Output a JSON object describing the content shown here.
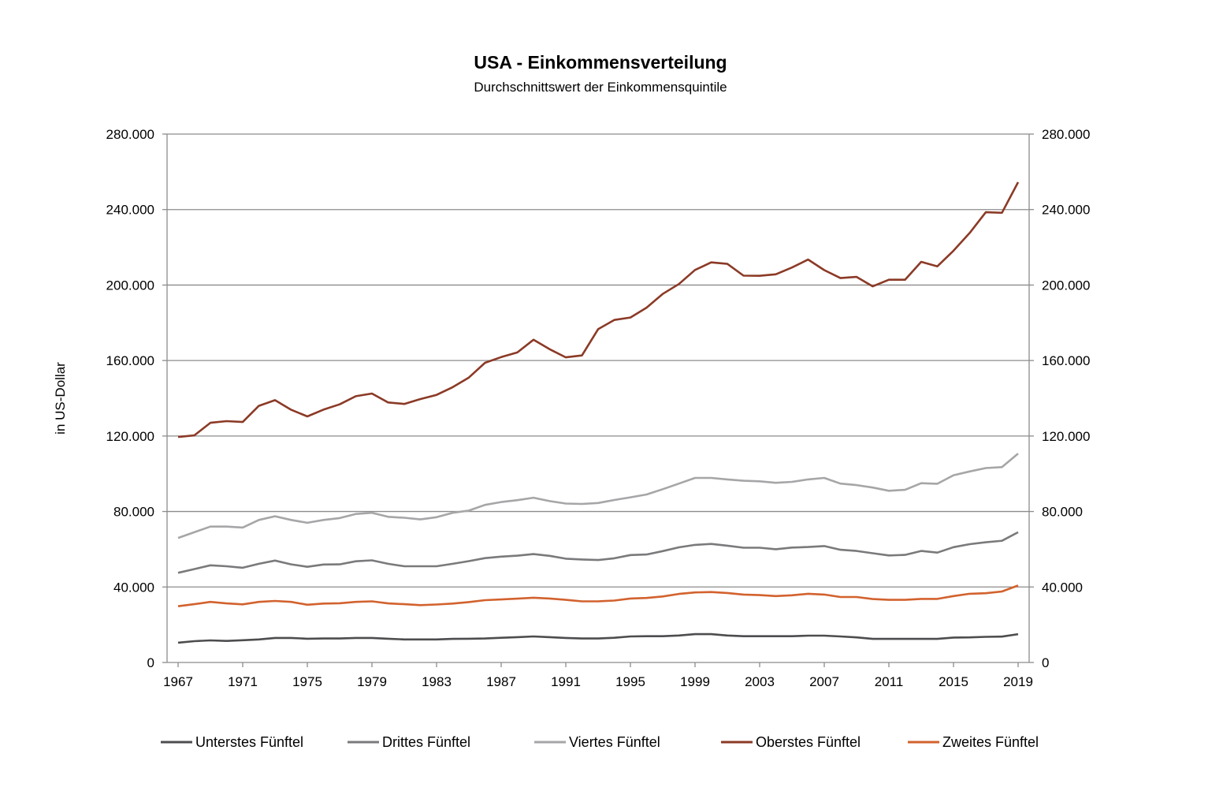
{
  "chart_data": {
    "type": "line",
    "title": "USA - Einkommensverteilung",
    "subtitle": "Durchschnittswert der Einkommensquintile",
    "ylabel": "in US-Dollar",
    "xlabel": "",
    "ylim": [
      0,
      280000
    ],
    "y_ticks": [
      "0",
      "40.000",
      "80.000",
      "120.000",
      "160.000",
      "200.000",
      "240.000",
      "280.000"
    ],
    "x_ticks": [
      "1967",
      "1971",
      "1975",
      "1979",
      "1983",
      "1987",
      "1991",
      "1995",
      "1999",
      "2003",
      "2007",
      "2011",
      "2015",
      "2019"
    ],
    "secondary_y_axis": true,
    "grid": "horizontal",
    "legend_position": "bottom",
    "x": [
      1967,
      1968,
      1969,
      1970,
      1971,
      1972,
      1973,
      1974,
      1975,
      1976,
      1977,
      1978,
      1979,
      1980,
      1981,
      1982,
      1983,
      1984,
      1985,
      1986,
      1987,
      1988,
      1989,
      1990,
      1991,
      1992,
      1993,
      1994,
      1995,
      1996,
      1997,
      1998,
      1999,
      2000,
      2001,
      2002,
      2003,
      2004,
      2005,
      2006,
      2007,
      2008,
      2009,
      2010,
      2011,
      2012,
      2013,
      2014,
      2015,
      2016,
      2017,
      2018,
      2019
    ],
    "series": [
      {
        "name": "Unterstes Fünftel",
        "color": "#4d4d4f",
        "values": [
          10500,
          11300,
          11700,
          11400,
          11800,
          12200,
          13000,
          13000,
          12600,
          12700,
          12700,
          13000,
          13000,
          12600,
          12200,
          12200,
          12200,
          12500,
          12600,
          12700,
          13100,
          13400,
          13800,
          13400,
          13000,
          12700,
          12700,
          13100,
          13800,
          13900,
          13900,
          14300,
          15000,
          15000,
          14300,
          13900,
          13900,
          13900,
          13900,
          14200,
          14200,
          13800,
          13300,
          12500,
          12500,
          12500,
          12500,
          12500,
          13200,
          13300,
          13600,
          13700,
          15000
        ]
      },
      {
        "name": "Drittes Fünftel",
        "color": "#7a7a7c",
        "values": [
          47500,
          49500,
          51500,
          51000,
          50200,
          52300,
          54000,
          52000,
          50700,
          51900,
          52000,
          53600,
          54100,
          52300,
          51000,
          51000,
          51000,
          52300,
          53700,
          55300,
          56100,
          56600,
          57400,
          56500,
          55000,
          54600,
          54300,
          55200,
          56900,
          57200,
          59000,
          61000,
          62300,
          62800,
          61900,
          60800,
          60800,
          60000,
          60900,
          61200,
          61700,
          59700,
          59100,
          57900,
          56700,
          57000,
          59100,
          58200,
          61100,
          62700,
          63700,
          64500,
          69000
        ]
      },
      {
        "name": "Viertes Fünftel",
        "color": "#a6a6a8",
        "values": [
          66000,
          69000,
          72000,
          72000,
          71500,
          75500,
          77500,
          75500,
          74000,
          75500,
          76500,
          78700,
          79300,
          77200,
          76700,
          75800,
          77000,
          79300,
          80500,
          83500,
          85000,
          86000,
          87300,
          85500,
          84200,
          84000,
          84500,
          86100,
          87500,
          89000,
          91800,
          94800,
          97800,
          97800,
          97000,
          96300,
          96000,
          95200,
          95700,
          97000,
          97800,
          94800,
          94000,
          92700,
          91000,
          91500,
          95000,
          94700,
          99200,
          101200,
          103000,
          103500,
          110700
        ]
      },
      {
        "name": "Oberstes Fünftel",
        "color": "#8b3a26",
        "values": [
          119500,
          120300,
          127000,
          127900,
          127400,
          136000,
          139000,
          133900,
          130400,
          134000,
          136800,
          141100,
          142500,
          137800,
          137000,
          139600,
          141800,
          145900,
          151000,
          158800,
          161800,
          164300,
          171000,
          166000,
          161700,
          162700,
          176600,
          181500,
          182800,
          188000,
          195300,
          200500,
          208000,
          212000,
          211200,
          205000,
          204900,
          205700,
          209300,
          213500,
          207900,
          203700,
          204300,
          199300,
          202800,
          202800,
          212300,
          209900,
          218200,
          227600,
          238600,
          238300,
          254500
        ]
      },
      {
        "name": "Zweites Fünftel",
        "color": "#d2622e",
        "values": [
          29800,
          30900,
          32100,
          31300,
          30800,
          32100,
          32600,
          32100,
          30600,
          31200,
          31400,
          32100,
          32400,
          31300,
          30900,
          30400,
          30700,
          31200,
          32000,
          33000,
          33400,
          33800,
          34300,
          33900,
          33200,
          32400,
          32400,
          32800,
          33900,
          34200,
          35000,
          36300,
          37100,
          37300,
          36800,
          36000,
          35700,
          35200,
          35600,
          36400,
          36000,
          34700,
          34700,
          33600,
          33200,
          33200,
          33700,
          33700,
          35200,
          36400,
          36700,
          37600,
          40800
        ]
      }
    ]
  }
}
